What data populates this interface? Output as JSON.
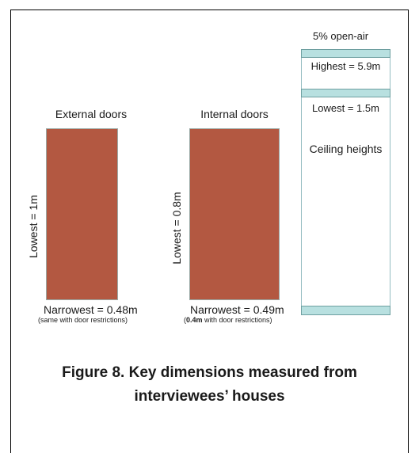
{
  "external": {
    "title": "External doors",
    "side_label": "Lowest = 1m",
    "bottom_label": "Narrowest = 0.48m",
    "note": "(same with door restrictions)"
  },
  "internal": {
    "title": "Internal doors",
    "side_label": "Lowest = 0.8m",
    "bottom_label": "Narrowest = 0.49m",
    "note_pre": "(",
    "note_bold": "0.4m",
    "note_post": " with door restrictions)"
  },
  "ceiling": {
    "top_note": "5% open-air",
    "highest": "Highest = 5.9m",
    "lowest": "Lowest = 1.5m",
    "title": "Ceiling heights"
  },
  "caption": {
    "line1": "Figure 8. Key dimensions measured from",
    "line2": "interviewees’ houses"
  },
  "colors": {
    "door_fill": "#b35841",
    "ceiling_band": "#b8e0e0"
  }
}
